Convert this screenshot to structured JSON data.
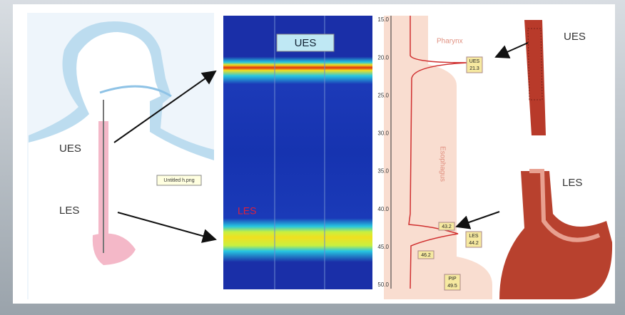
{
  "left_panel": {
    "labels": [
      "UES",
      "LES"
    ],
    "file_tag": "Untitled h.png"
  },
  "manometry": {
    "top_label": "UES",
    "bottom_label": "LES"
  },
  "profile": {
    "axis_labels": [
      "15.0",
      "20.0",
      "25.0",
      "30.0",
      "35.0",
      "40.0",
      "45.0",
      "50.0"
    ],
    "regions": [
      "Pharynx",
      "Esophagus"
    ],
    "markers": [
      {
        "title": "UES",
        "value": "21.3"
      },
      {
        "value": "43.2"
      },
      {
        "title": "LES",
        "value": "44.2"
      },
      {
        "value": "46.2"
      },
      {
        "title": "PIP",
        "value": "49.5"
      }
    ]
  },
  "anatomy": {
    "upper": "UES",
    "lower": "LES"
  }
}
